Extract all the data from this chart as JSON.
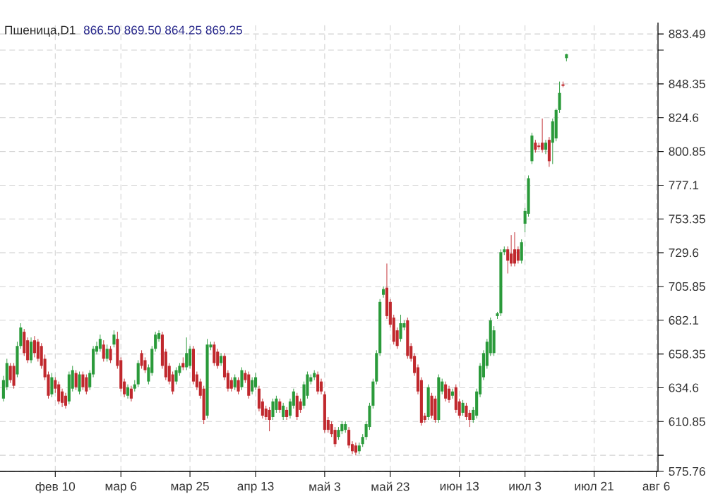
{
  "chart_data": {
    "type": "candlestick",
    "title": "Пшеница,D1",
    "subtitle": "866.50   869.50   864.25   869.25",
    "categories": [
      null,
      null,
      null,
      null,
      null,
      null,
      null,
      null,
      null,
      null,
      null,
      null,
      null,
      null,
      null,
      "фев 10",
      null,
      null,
      null,
      null,
      null,
      null,
      null,
      null,
      null,
      null,
      null,
      null,
      null,
      null,
      null,
      null,
      null,
      null,
      "мар 6",
      null,
      null,
      null,
      null,
      null,
      null,
      null,
      null,
      null,
      null,
      null,
      null,
      null,
      null,
      null,
      null,
      null,
      null,
      null,
      "мар 25",
      null,
      null,
      null,
      null,
      null,
      null,
      null,
      null,
      null,
      null,
      null,
      null,
      null,
      null,
      null,
      null,
      null,
      null,
      "апр 13",
      null,
      null,
      null,
      null,
      null,
      null,
      null,
      null,
      null,
      null,
      null,
      null,
      null,
      null,
      null,
      null,
      null,
      null,
      null,
      "май 3",
      null,
      null,
      null,
      null,
      null,
      null,
      null,
      null,
      null,
      null,
      null,
      null,
      null,
      null,
      null,
      null,
      null,
      null,
      "май 23",
      null,
      null,
      null,
      null,
      null,
      null,
      null,
      null,
      null,
      null,
      null,
      null,
      null,
      null,
      null,
      null,
      null,
      null,
      null,
      "июн 13",
      null,
      null,
      null,
      null,
      null,
      null,
      null,
      null,
      null,
      null,
      null,
      null,
      null,
      null,
      null,
      null,
      null,
      null,
      "июл 3",
      null,
      null,
      null,
      null,
      null,
      null,
      null,
      null,
      null,
      null,
      null,
      null,
      null,
      null,
      null,
      null,
      null,
      null,
      null,
      "июл 21",
      null,
      null,
      null,
      null,
      null,
      null,
      null,
      null,
      null,
      null,
      null,
      null,
      null,
      null,
      null,
      null,
      null,
      "авг 6"
    ],
    "ohlc": [
      [
        627,
        643,
        625,
        640
      ],
      [
        635,
        655,
        633,
        652
      ],
      [
        650,
        652,
        638,
        640
      ],
      [
        650,
        652,
        634,
        636
      ],
      [
        644,
        667,
        642,
        664
      ],
      [
        664,
        680,
        662,
        677
      ],
      [
        674,
        676,
        657,
        659
      ],
      [
        668,
        670,
        652,
        654
      ],
      [
        654,
        670,
        652,
        667
      ],
      [
        668,
        671,
        656,
        659
      ],
      [
        667,
        669,
        653,
        655
      ],
      [
        664,
        666,
        648,
        650
      ],
      [
        655,
        658,
        640,
        642
      ],
      [
        644,
        646,
        627,
        629
      ],
      [
        630,
        645,
        628,
        642
      ],
      [
        640,
        642,
        631,
        634
      ],
      [
        637,
        639,
        623,
        625
      ],
      [
        632,
        634,
        621,
        624
      ],
      [
        629,
        631,
        620,
        622
      ],
      [
        625,
        646,
        623,
        644
      ],
      [
        634,
        650,
        632,
        647
      ],
      [
        645,
        647,
        633,
        635
      ],
      [
        632,
        646,
        630,
        644
      ],
      [
        644,
        646,
        633,
        635
      ],
      [
        642,
        644,
        630,
        632
      ],
      [
        635,
        647,
        633,
        645
      ],
      [
        644,
        664,
        642,
        662
      ],
      [
        660,
        667,
        658,
        664
      ],
      [
        662,
        672,
        660,
        669
      ],
      [
        665,
        668,
        653,
        655
      ],
      [
        655,
        665,
        653,
        662
      ],
      [
        662,
        664,
        652,
        654
      ],
      [
        665,
        675,
        663,
        672
      ],
      [
        669,
        674,
        648,
        650
      ],
      [
        654,
        656,
        632,
        634
      ],
      [
        639,
        641,
        628,
        630
      ],
      [
        629,
        637,
        627,
        635
      ],
      [
        634,
        636,
        625,
        627
      ],
      [
        634,
        640,
        632,
        637
      ],
      [
        637,
        654,
        635,
        652
      ],
      [
        659,
        661,
        648,
        650
      ],
      [
        654,
        656,
        645,
        647
      ],
      [
        639,
        651,
        637,
        649
      ],
      [
        645,
        664,
        643,
        662
      ],
      [
        662,
        674,
        660,
        672
      ],
      [
        669,
        675,
        667,
        673
      ],
      [
        672,
        674,
        648,
        650
      ],
      [
        660,
        662,
        640,
        642
      ],
      [
        650,
        652,
        637,
        639
      ],
      [
        644,
        646,
        630,
        632
      ],
      [
        639,
        649,
        637,
        647
      ],
      [
        645,
        652,
        643,
        650
      ],
      [
        652,
        656,
        647,
        649
      ],
      [
        649,
        670,
        647,
        659
      ],
      [
        650,
        664,
        648,
        662
      ],
      [
        662,
        664,
        637,
        639
      ],
      [
        644,
        646,
        633,
        635
      ],
      [
        639,
        641,
        627,
        629
      ],
      [
        634,
        636,
        609,
        612
      ],
      [
        615,
        669,
        613,
        665
      ],
      [
        663,
        667,
        661,
        665
      ],
      [
        665,
        667,
        650,
        652
      ],
      [
        660,
        662,
        648,
        650
      ],
      [
        652,
        659,
        650,
        657
      ],
      [
        657,
        659,
        640,
        642
      ],
      [
        645,
        647,
        632,
        634
      ],
      [
        640,
        642,
        632,
        634
      ],
      [
        635,
        644,
        633,
        642
      ],
      [
        640,
        642,
        630,
        632
      ],
      [
        635,
        649,
        633,
        647
      ],
      [
        645,
        647,
        638,
        640
      ],
      [
        644,
        646,
        627,
        629
      ],
      [
        632,
        642,
        630,
        640
      ],
      [
        635,
        645,
        633,
        642
      ],
      [
        634,
        636,
        618,
        620
      ],
      [
        625,
        627,
        613,
        615
      ],
      [
        620,
        622,
        612,
        614
      ],
      [
        619,
        621,
        604,
        612
      ],
      [
        614,
        627,
        612,
        625
      ],
      [
        619,
        629,
        617,
        627
      ],
      [
        625,
        627,
        617,
        619
      ],
      [
        614,
        624,
        612,
        622
      ],
      [
        619,
        621,
        612,
        614
      ],
      [
        615,
        627,
        613,
        625
      ],
      [
        622,
        634,
        620,
        632
      ],
      [
        629,
        631,
        612,
        614
      ],
      [
        625,
        627,
        617,
        619
      ],
      [
        622,
        639,
        620,
        637
      ],
      [
        629,
        646,
        627,
        644
      ],
      [
        639,
        644,
        637,
        642
      ],
      [
        642,
        647,
        640,
        645
      ],
      [
        644,
        646,
        630,
        632
      ],
      [
        639,
        641,
        630,
        632
      ],
      [
        630,
        632,
        603,
        605
      ],
      [
        612,
        614,
        603,
        605
      ],
      [
        609,
        611,
        600,
        602
      ],
      [
        605,
        607,
        593,
        595
      ],
      [
        600,
        607,
        598,
        605
      ],
      [
        604,
        611,
        602,
        609
      ],
      [
        605,
        611,
        603,
        609
      ],
      [
        605,
        607,
        592,
        594
      ],
      [
        595,
        597,
        588,
        590
      ],
      [
        594,
        596,
        587,
        589
      ],
      [
        590,
        596,
        588,
        594
      ],
      [
        595,
        602,
        593,
        600
      ],
      [
        600,
        611,
        598,
        609
      ],
      [
        607,
        624,
        605,
        622
      ],
      [
        622,
        641,
        620,
        639
      ],
      [
        639,
        661,
        637,
        659
      ],
      [
        659,
        697,
        657,
        695
      ],
      [
        700,
        706,
        698,
        704
      ],
      [
        705,
        722,
        683,
        685
      ],
      [
        695,
        697,
        677,
        679
      ],
      [
        684,
        686,
        665,
        667
      ],
      [
        675,
        677,
        662,
        664
      ],
      [
        669,
        686,
        667,
        680
      ],
      [
        677,
        682,
        675,
        680
      ],
      [
        682,
        684,
        655,
        657
      ],
      [
        664,
        666,
        653,
        655
      ],
      [
        657,
        659,
        643,
        645
      ],
      [
        649,
        651,
        630,
        632
      ],
      [
        640,
        642,
        608,
        610
      ],
      [
        615,
        617,
        610,
        612
      ],
      [
        614,
        637,
        612,
        635
      ],
      [
        629,
        631,
        613,
        615
      ],
      [
        627,
        629,
        610,
        612
      ],
      [
        612,
        644,
        610,
        642
      ],
      [
        632,
        641,
        630,
        639
      ],
      [
        637,
        639,
        625,
        627
      ],
      [
        634,
        636,
        624,
        626
      ],
      [
        629,
        634,
        627,
        632
      ],
      [
        635,
        637,
        617,
        619
      ],
      [
        625,
        627,
        613,
        615
      ],
      [
        617,
        626,
        615,
        624
      ],
      [
        622,
        624,
        612,
        614
      ],
      [
        617,
        619,
        607,
        612
      ],
      [
        612,
        621,
        610,
        619
      ],
      [
        615,
        634,
        613,
        632
      ],
      [
        630,
        652,
        628,
        650
      ],
      [
        642,
        661,
        640,
        659
      ],
      [
        650,
        669,
        648,
        667
      ],
      [
        659,
        684,
        657,
        682
      ],
      [
        659,
        678,
        657,
        675
      ],
      [
        685,
        688,
        683,
        687
      ],
      [
        687,
        732,
        685,
        730
      ],
      [
        730,
        734,
        728,
        732
      ],
      [
        732,
        734,
        715,
        724
      ],
      [
        729,
        742,
        720,
        722
      ],
      [
        732,
        744,
        720,
        722
      ],
      [
        732,
        734,
        722,
        724
      ],
      [
        724,
        739,
        722,
        737
      ],
      [
        750,
        761,
        744,
        759
      ],
      [
        757,
        784,
        755,
        782
      ],
      [
        794,
        814,
        792,
        812
      ],
      [
        807,
        809,
        800,
        802
      ],
      [
        805,
        807,
        802,
        804
      ],
      [
        807,
        824,
        800,
        802
      ],
      [
        802,
        809,
        799,
        807
      ],
      [
        809,
        811,
        790,
        794
      ],
      [
        807,
        824,
        792,
        822
      ],
      [
        810,
        831,
        808,
        830
      ],
      [
        830,
        850,
        828,
        842
      ],
      [
        848,
        850,
        846,
        847
      ],
      [
        866.5,
        869.5,
        864.25,
        869.25
      ],
      null,
      null,
      null,
      null,
      null,
      null,
      null,
      null,
      null,
      null,
      null,
      null,
      null,
      null,
      null,
      null,
      null,
      null,
      null,
      null,
      null,
      null,
      null,
      null,
      null,
      null
    ],
    "colors": [
      "#2a9a3a",
      "#2a9a3a",
      "#c0282d",
      "#c0282d",
      "#2a9a3a",
      "#2a9a3a",
      "#c0282d",
      "#c0282d",
      "#2a9a3a",
      "#c0282d",
      "#c0282d",
      "#c0282d",
      "#c0282d",
      "#c0282d",
      "#2a9a3a",
      "#c0282d",
      "#c0282d",
      "#c0282d",
      "#c0282d",
      "#2a9a3a",
      "#2a9a3a",
      "#c0282d",
      "#2a9a3a",
      "#c0282d",
      "#c0282d",
      "#2a9a3a",
      "#2a9a3a",
      "#2a9a3a",
      "#2a9a3a",
      "#c0282d",
      "#2a9a3a",
      "#c0282d",
      "#2a9a3a",
      "#c0282d",
      "#c0282d",
      "#c0282d",
      "#2a9a3a",
      "#c0282d",
      "#2a9a3a",
      "#2a9a3a",
      "#c0282d",
      "#c0282d",
      "#2a9a3a",
      "#2a9a3a",
      "#2a9a3a",
      "#2a9a3a",
      "#c0282d",
      "#c0282d",
      "#c0282d",
      "#c0282d",
      "#2a9a3a",
      "#2a9a3a",
      "#c0282d",
      "#2a9a3a",
      "#2a9a3a",
      "#c0282d",
      "#c0282d",
      "#c0282d",
      "#c0282d",
      "#2a9a3a",
      "#2a9a3a",
      "#c0282d",
      "#c0282d",
      "#2a9a3a",
      "#c0282d",
      "#c0282d",
      "#c0282d",
      "#2a9a3a",
      "#c0282d",
      "#2a9a3a",
      "#c0282d",
      "#c0282d",
      "#2a9a3a",
      "#2a9a3a",
      "#c0282d",
      "#c0282d",
      "#c0282d",
      "#c0282d",
      "#2a9a3a",
      "#2a9a3a",
      "#c0282d",
      "#2a9a3a",
      "#c0282d",
      "#2a9a3a",
      "#2a9a3a",
      "#c0282d",
      "#c0282d",
      "#2a9a3a",
      "#2a9a3a",
      "#2a9a3a",
      "#2a9a3a",
      "#c0282d",
      "#c0282d",
      "#c0282d",
      "#c0282d",
      "#c0282d",
      "#c0282d",
      "#2a9a3a",
      "#2a9a3a",
      "#2a9a3a",
      "#c0282d",
      "#c0282d",
      "#c0282d",
      "#2a9a3a",
      "#2a9a3a",
      "#2a9a3a",
      "#2a9a3a",
      "#2a9a3a",
      "#2a9a3a",
      "#2a9a3a",
      "#2a9a3a",
      "#c0282d",
      "#c0282d",
      "#c0282d",
      "#c0282d",
      "#2a9a3a",
      "#2a9a3a",
      "#c0282d",
      "#c0282d",
      "#c0282d",
      "#c0282d",
      "#c0282d",
      "#c0282d",
      "#2a9a3a",
      "#c0282d",
      "#c0282d",
      "#2a9a3a",
      "#2a9a3a",
      "#c0282d",
      "#c0282d",
      "#2a9a3a",
      "#c0282d",
      "#c0282d",
      "#2a9a3a",
      "#c0282d",
      "#c0282d",
      "#2a9a3a",
      "#2a9a3a",
      "#2a9a3a",
      "#2a9a3a",
      "#2a9a3a",
      "#2a9a3a",
      "#2a9a3a",
      "#2a9a3a",
      "#2a9a3a",
      "#2a9a3a",
      "#c0282d",
      "#c0282d",
      "#c0282d",
      "#c0282d",
      "#2a9a3a",
      "#2a9a3a",
      "#2a9a3a",
      "#2a9a3a",
      "#c0282d",
      "#c0282d",
      "#c0282d",
      "#2a9a3a",
      "#c0282d",
      "#2a9a3a",
      "#2a9a3a",
      "#2a9a3a",
      "#c0282d",
      "#2a9a3a",
      null,
      null,
      null,
      null,
      null,
      null,
      null,
      null,
      null,
      null,
      null,
      null,
      null,
      null,
      null,
      null,
      null,
      null,
      null,
      null,
      null,
      null,
      null,
      null,
      null,
      null
    ],
    "ylim": [
      575.76,
      891.5
    ],
    "yticks": [
      883.49,
      {
        "value": 872.1,
        "label": null
      },
      848.35,
      824.6,
      800.85,
      777.1,
      753.35,
      729.6,
      705.85,
      682.1,
      658.35,
      634.6,
      610.85,
      {
        "value": 587.1,
        "label": null
      },
      575.76
    ],
    "grid": true
  }
}
